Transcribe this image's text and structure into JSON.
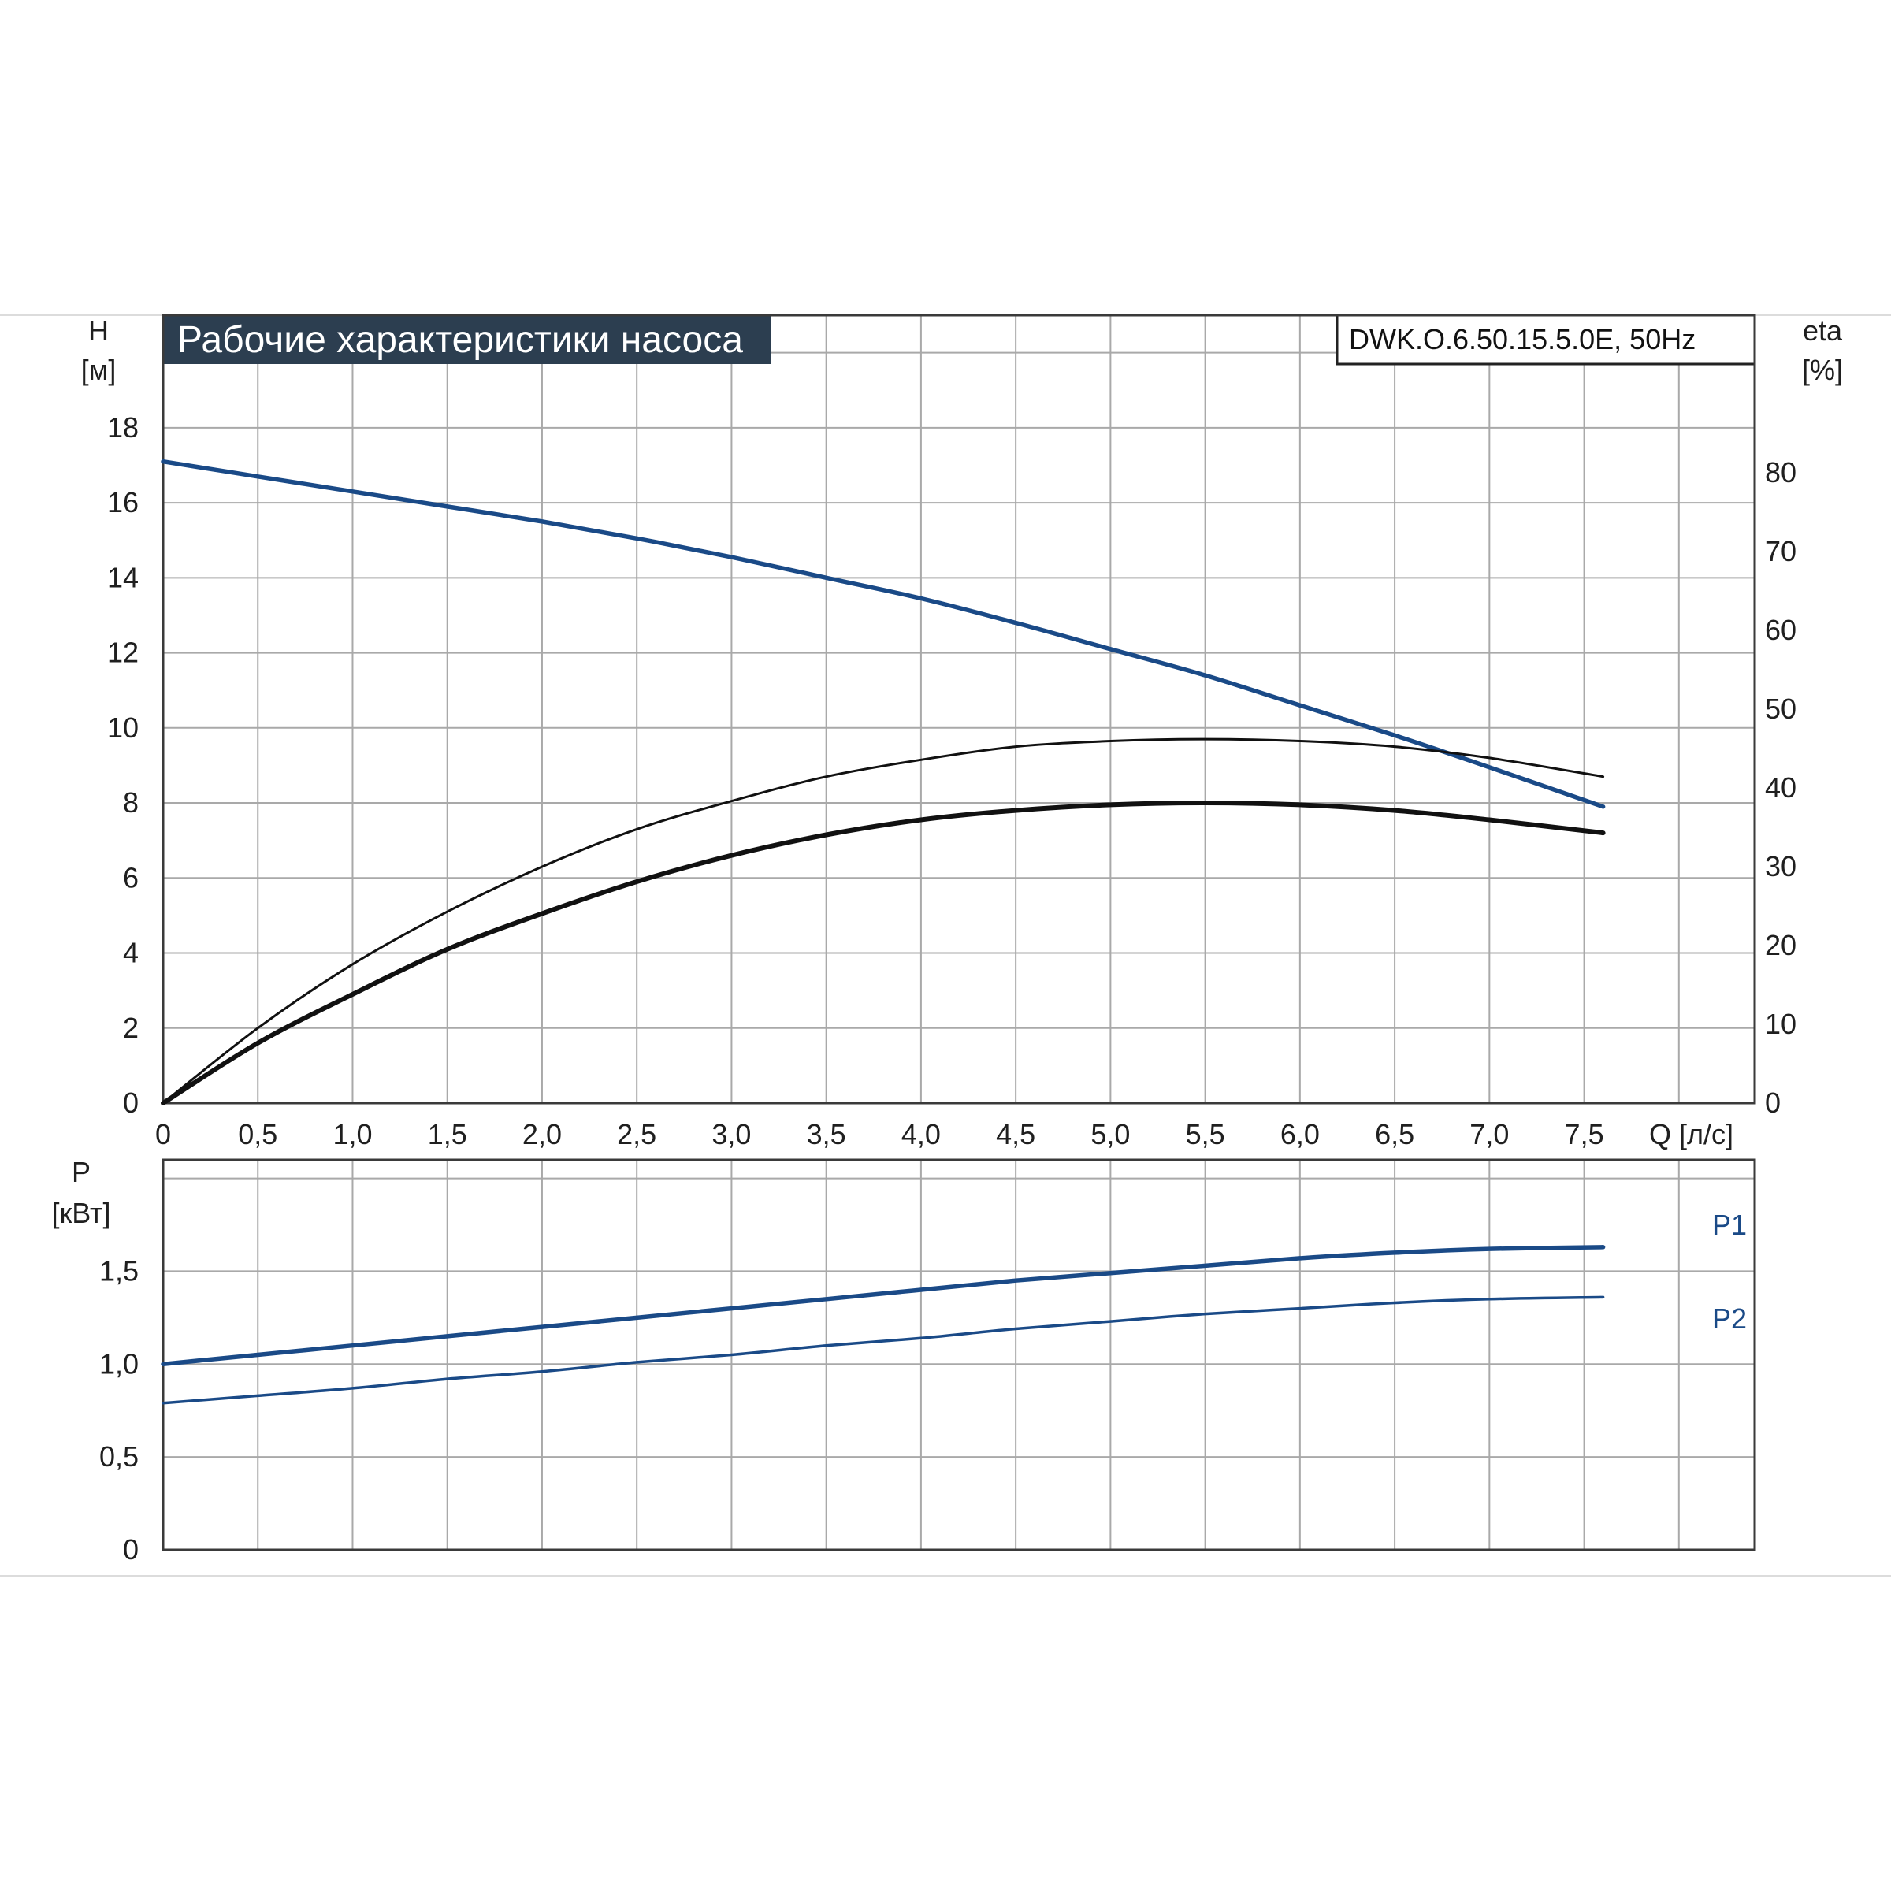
{
  "title": "Рабочие характеристики насоса",
  "model": "DWK.O.6.50.15.5.0E, 50Hz",
  "colors": {
    "head_curve": "#1a4a87",
    "eta_curves": "#111111",
    "power_curves": "#1a4a87",
    "title_bg": "#2c3e50",
    "grid": "#a9a9a9"
  },
  "chart_data": [
    {
      "type": "line",
      "name": "head_and_efficiency",
      "xlabel": "Q [л/с]",
      "ylabel_left": [
        "H",
        "[м]"
      ],
      "ylabel_right": [
        "eta",
        "[%]"
      ],
      "xlim": [
        0,
        8.4
      ],
      "ylim_left": [
        0,
        21
      ],
      "ylim_right": [
        0,
        100
      ],
      "grid": true,
      "x_ticks": [
        "0",
        "0,5",
        "1,0",
        "1,5",
        "2,0",
        "2,5",
        "3,0",
        "3,5",
        "4,0",
        "4,5",
        "5,0",
        "5,5",
        "6,0",
        "6,5",
        "7,0",
        "7,5"
      ],
      "y_ticks_left": [
        "0",
        "2",
        "4",
        "6",
        "8",
        "10",
        "12",
        "14",
        "16",
        "18"
      ],
      "y_ticks_right": [
        "0",
        "10",
        "20",
        "30",
        "40",
        "50",
        "60",
        "70",
        "80"
      ],
      "series": [
        {
          "axis": "left",
          "style": "blue-thick",
          "x": [
            0,
            0.5,
            1.0,
            1.5,
            2.0,
            2.5,
            3.0,
            3.5,
            4.0,
            4.5,
            5.0,
            5.5,
            6.0,
            6.5,
            7.0,
            7.6
          ],
          "y": [
            17.1,
            16.7,
            16.3,
            15.9,
            15.5,
            15.05,
            14.55,
            14.0,
            13.45,
            12.8,
            12.1,
            11.4,
            10.6,
            9.8,
            8.95,
            7.9
          ]
        },
        {
          "axis": "left",
          "style": "black-thin",
          "x": [
            0,
            0.5,
            1.0,
            1.5,
            2.0,
            2.5,
            3.0,
            3.5,
            4.0,
            4.5,
            5.0,
            5.5,
            6.0,
            6.5,
            7.0,
            7.6
          ],
          "y": [
            0,
            2.0,
            3.7,
            5.1,
            6.3,
            7.3,
            8.05,
            8.7,
            9.15,
            9.5,
            9.65,
            9.7,
            9.65,
            9.5,
            9.2,
            8.7
          ]
        },
        {
          "axis": "left",
          "style": "black-thick",
          "x": [
            0,
            0.5,
            1.0,
            1.5,
            2.0,
            2.5,
            3.0,
            3.5,
            4.0,
            4.5,
            5.0,
            5.5,
            6.0,
            6.5,
            7.0,
            7.6
          ],
          "y": [
            0,
            1.6,
            2.9,
            4.1,
            5.05,
            5.9,
            6.6,
            7.15,
            7.55,
            7.8,
            7.95,
            8.0,
            7.95,
            7.8,
            7.55,
            7.2
          ]
        }
      ]
    },
    {
      "type": "line",
      "name": "power",
      "ylabel": [
        "P",
        "[кВт]"
      ],
      "xlim": [
        0,
        8.4
      ],
      "ylim": [
        0,
        2.1
      ],
      "grid": true,
      "y_ticks": [
        "0",
        "0,5",
        "1,0",
        "1,5"
      ],
      "series": [
        {
          "name": "P1",
          "style": "blue-thick",
          "x": [
            0,
            0.5,
            1.0,
            1.5,
            2.0,
            2.5,
            3.0,
            3.5,
            4.0,
            4.5,
            5.0,
            5.5,
            6.0,
            6.5,
            7.0,
            7.6
          ],
          "y": [
            1.0,
            1.05,
            1.1,
            1.15,
            1.2,
            1.25,
            1.3,
            1.35,
            1.4,
            1.45,
            1.49,
            1.53,
            1.57,
            1.6,
            1.62,
            1.63
          ]
        },
        {
          "name": "P2",
          "style": "blue-thin",
          "x": [
            0,
            0.5,
            1.0,
            1.5,
            2.0,
            2.5,
            3.0,
            3.5,
            4.0,
            4.5,
            5.0,
            5.5,
            6.0,
            6.5,
            7.0,
            7.6
          ],
          "y": [
            0.79,
            0.83,
            0.87,
            0.92,
            0.96,
            1.01,
            1.05,
            1.1,
            1.14,
            1.19,
            1.23,
            1.27,
            1.3,
            1.33,
            1.35,
            1.36
          ]
        }
      ]
    }
  ]
}
